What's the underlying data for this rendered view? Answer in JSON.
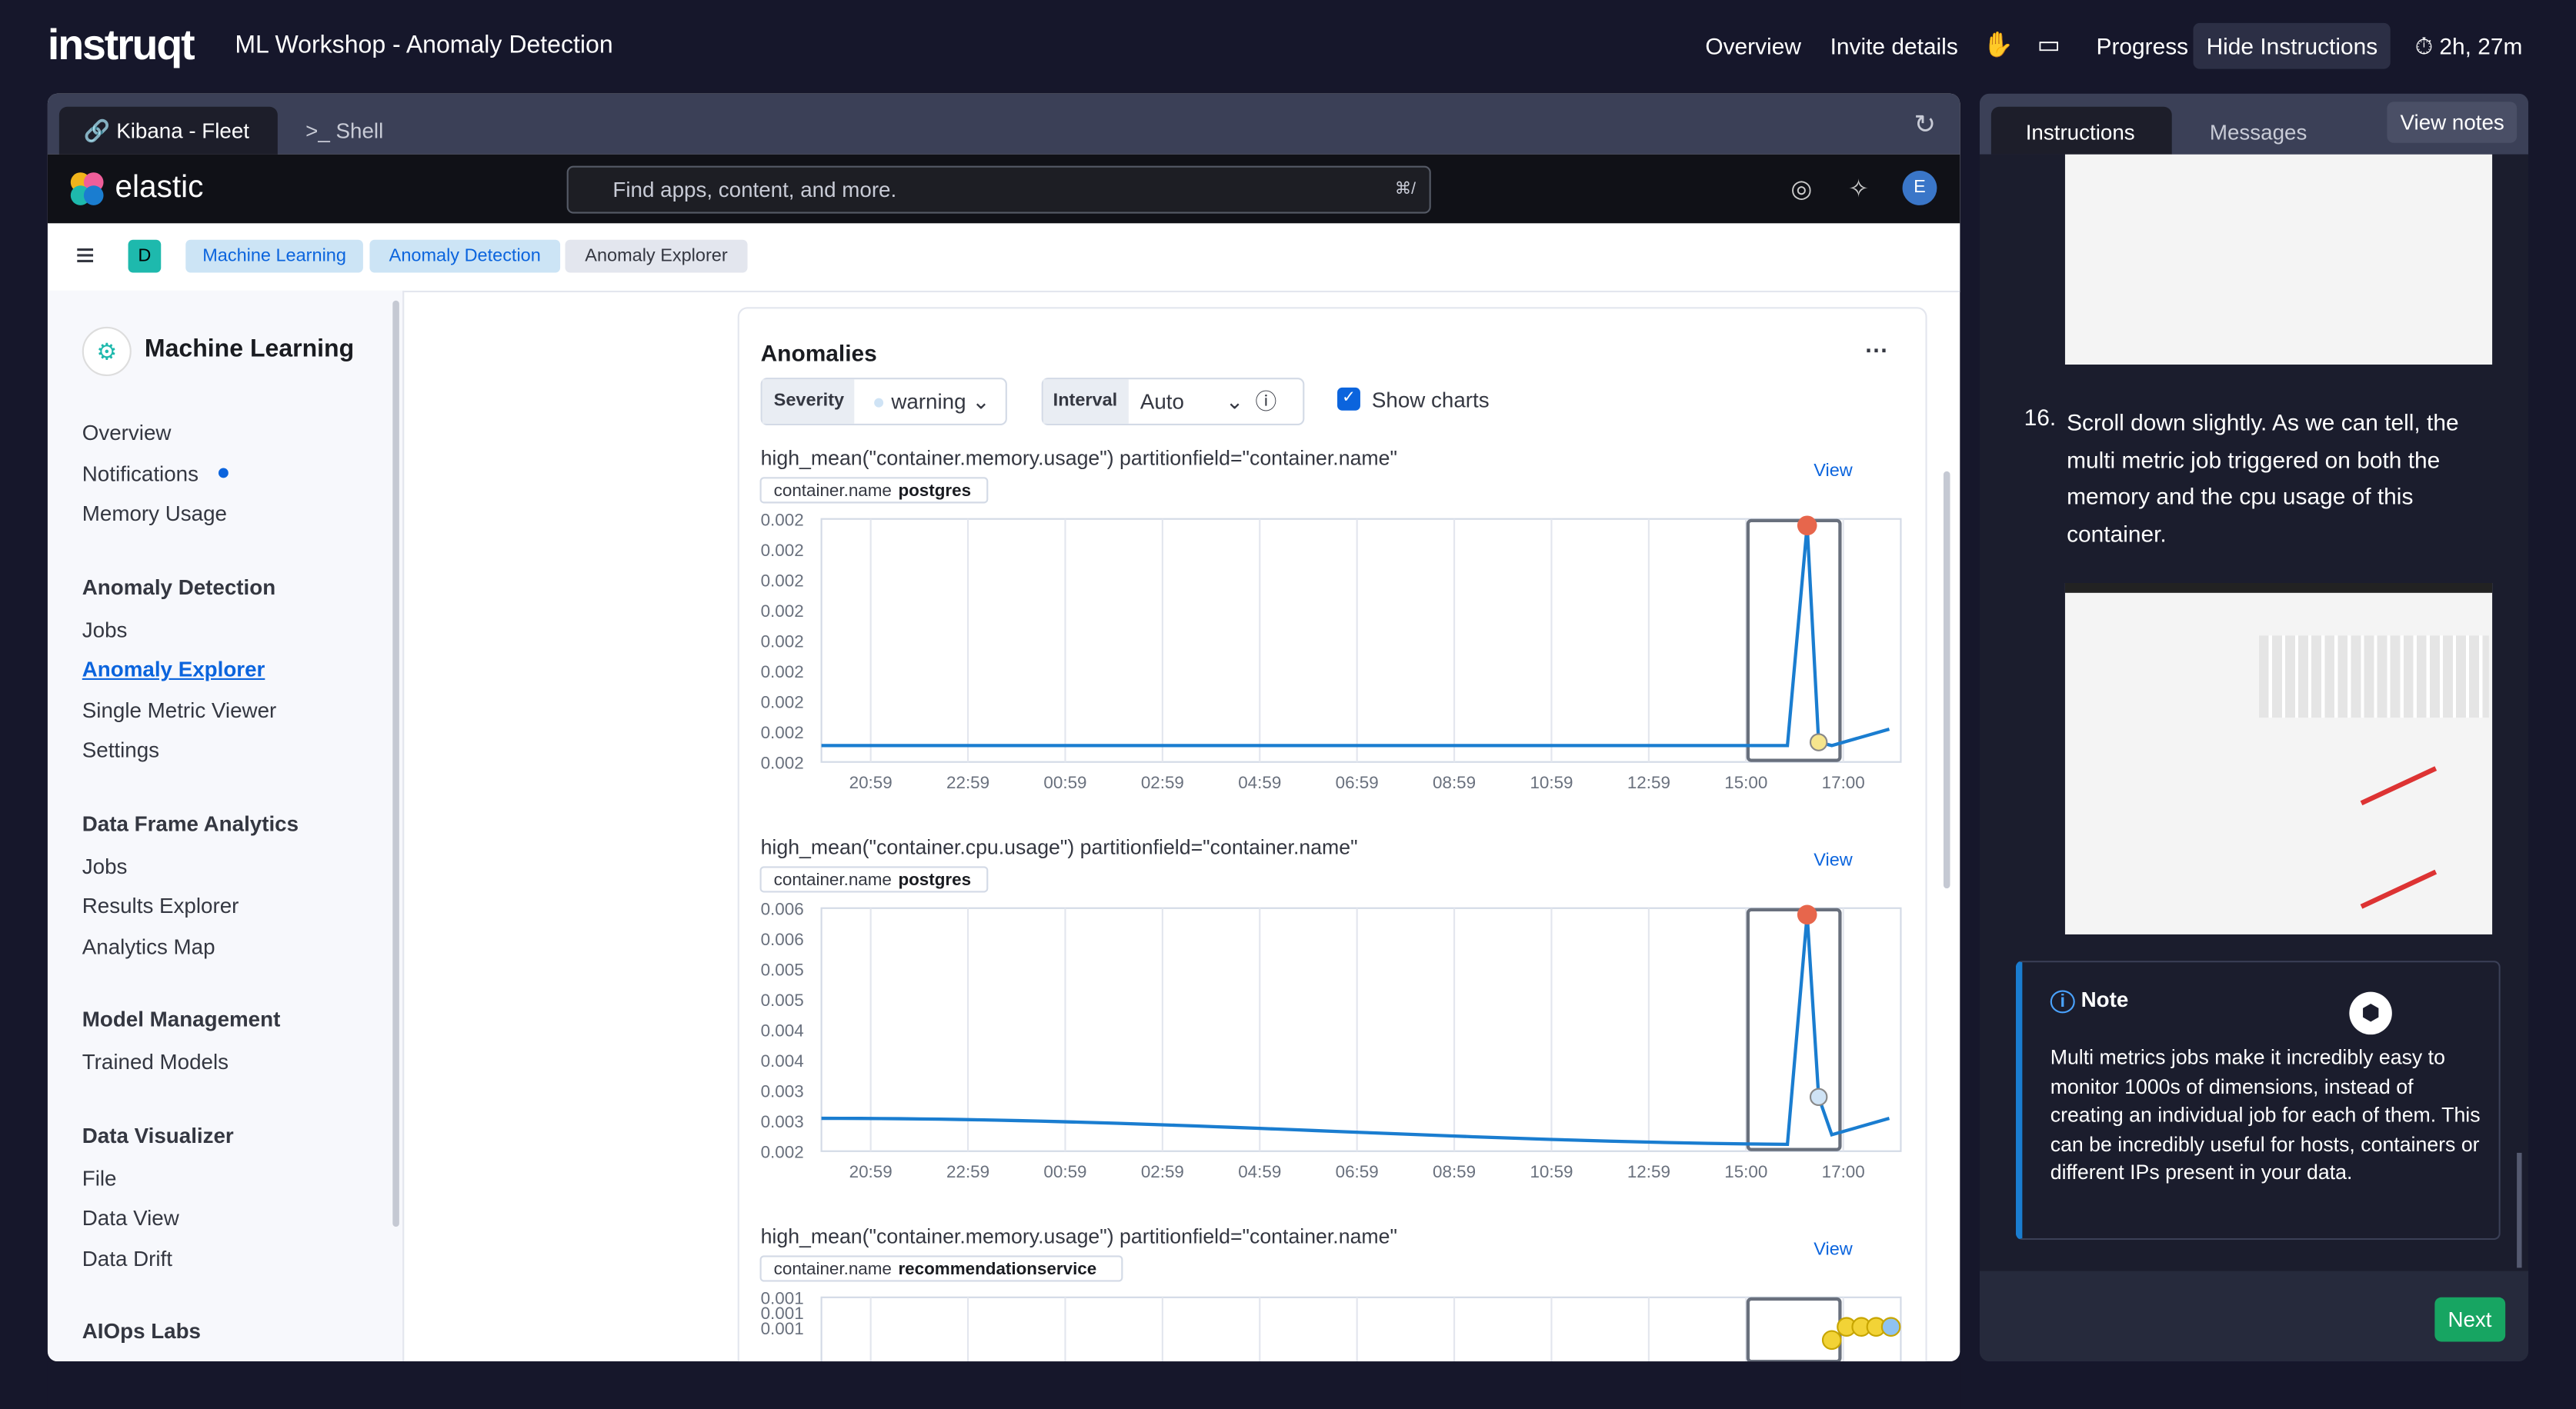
{
  "header": {
    "logo": "instruqt",
    "title": "ML Workshop - Anomaly Detection",
    "nav": [
      "Overview",
      "Invite details",
      "Progress",
      "Hide Instructions"
    ],
    "timer": "2h, 27m"
  },
  "tabs": [
    "Kibana - Fleet",
    "Shell"
  ],
  "kibana": {
    "brand": "elastic",
    "search": "Find apps, content, and more.",
    "shortcut": "⌘/",
    "avatar": "E",
    "space": "D",
    "breadcrumbs": [
      "Machine Learning",
      "Anomaly Detection",
      "Anomaly Explorer"
    ]
  },
  "sidebar": {
    "title": "Machine Learning",
    "top_items": [
      "Overview",
      "Notifications",
      "Memory Usage"
    ],
    "sections": [
      {
        "title": "Anomaly Detection",
        "items": [
          "Jobs",
          "Anomaly Explorer",
          "Single Metric Viewer",
          "Settings"
        ]
      },
      {
        "title": "Data Frame Analytics",
        "items": [
          "Jobs",
          "Results Explorer",
          "Analytics Map"
        ]
      },
      {
        "title": "Model Management",
        "items": [
          "Trained Models"
        ]
      },
      {
        "title": "Data Visualizer",
        "items": [
          "File",
          "Data View",
          "Data Drift"
        ]
      },
      {
        "title": "AIOps Labs",
        "items": []
      }
    ]
  },
  "panel": {
    "title": "Anomalies",
    "severity_label": "Severity",
    "severity_value": "warning",
    "interval_label": "Interval",
    "interval_value": "Auto",
    "show_charts": "Show charts",
    "charts": [
      {
        "title": "high_mean(\"container.memory.usage\") partitionfield=\"container.name\"",
        "field": "container.name",
        "entity": "postgres",
        "view": "View",
        "yticks": [
          "0.002",
          "0.002",
          "0.002",
          "0.002",
          "0.002",
          "0.002",
          "0.002",
          "0.002",
          "0.002"
        ],
        "xticks": [
          "20:59",
          "22:59",
          "00:59",
          "02:59",
          "04:59",
          "06:59",
          "08:59",
          "10:59",
          "12:59",
          "15:00",
          "17:00"
        ]
      },
      {
        "title": "high_mean(\"container.cpu.usage\") partitionfield=\"container.name\"",
        "field": "container.name",
        "entity": "postgres",
        "view": "View",
        "yticks": [
          "0.006",
          "0.006",
          "0.005",
          "0.005",
          "0.004",
          "0.004",
          "0.003",
          "0.003",
          "0.002"
        ],
        "xticks": [
          "20:59",
          "22:59",
          "00:59",
          "02:59",
          "04:59",
          "06:59",
          "08:59",
          "10:59",
          "12:59",
          "15:00",
          "17:00"
        ]
      },
      {
        "title": "high_mean(\"container.memory.usage\") partitionfield=\"container.name\"",
        "field": "container.name",
        "entity": "recommendationservice",
        "view": "View",
        "yticks": [
          "0.001",
          "0.001",
          "0.001"
        ],
        "xticks": []
      }
    ]
  },
  "instructions": {
    "tabs": [
      "Instructions",
      "Messages"
    ],
    "view_notes": "View notes",
    "step_number": "16.",
    "step_text": "Scroll down slightly. As we can tell, the multi metric job triggered on both the memory and the cpu usage of this container.",
    "note_title": "Note",
    "note_text": "Multi metrics jobs make it incredibly easy to monitor 1000s of dimensions, instead of creating an individual job for each of them. This can be incredibly useful for hosts, containers or different IPs present in your data.",
    "next": "Next"
  }
}
